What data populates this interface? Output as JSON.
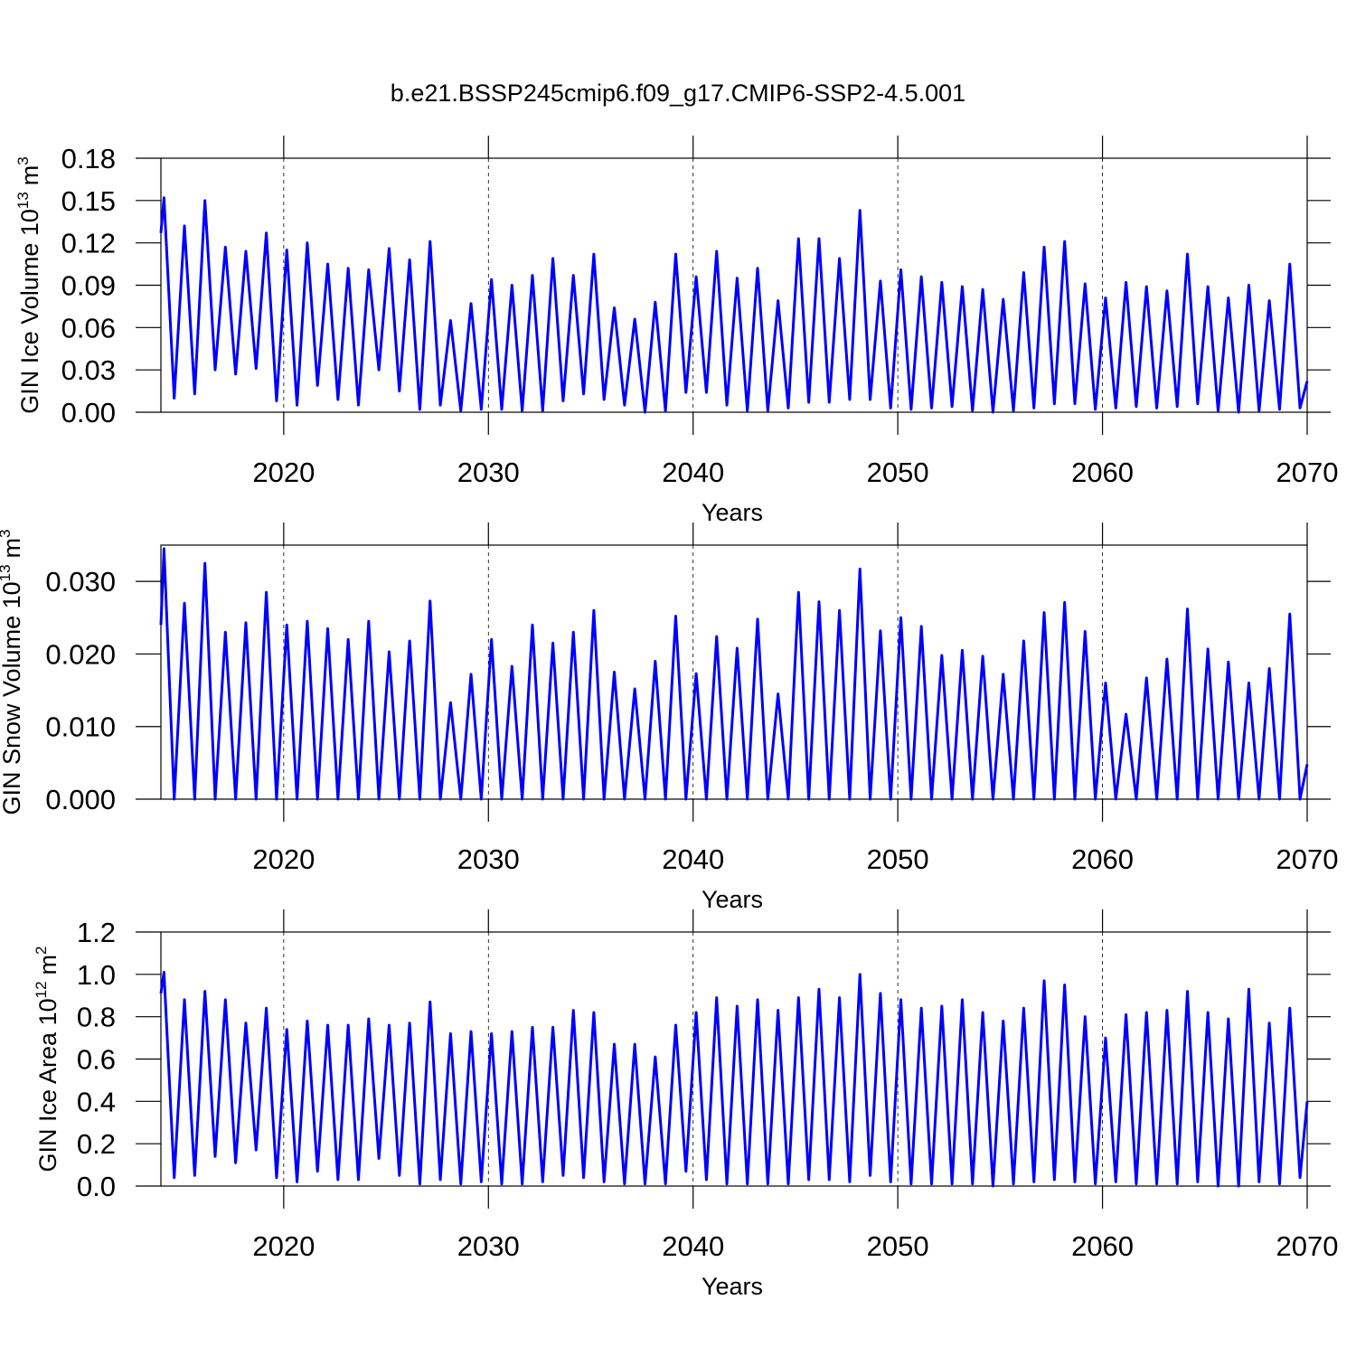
{
  "title": "b.e21.BSSP245cmip6.f09_g17.CMIP6-SSP2-4.5.001",
  "chart_data": [
    {
      "type": "line",
      "ylabel": [
        "GIN Ice Volume 10",
        "13",
        "m",
        "3"
      ],
      "xlabel": "Years",
      "x": [
        2014,
        2014.15,
        2014.65,
        2015.15,
        2015.65,
        2016.15,
        2016.65,
        2017.15,
        2017.65,
        2018.15,
        2018.65,
        2019.15,
        2019.65,
        2020.15,
        2020.65,
        2021.15,
        2021.65,
        2022.15,
        2022.65,
        2023.15,
        2023.65,
        2024.15,
        2024.65,
        2025.15,
        2025.65,
        2026.15,
        2026.65,
        2027.15,
        2027.65,
        2028.15,
        2028.65,
        2029.15,
        2029.65,
        2030.15,
        2030.65,
        2031.15,
        2031.65,
        2032.15,
        2032.65,
        2033.15,
        2033.65,
        2034.15,
        2034.65,
        2035.15,
        2035.65,
        2036.15,
        2036.65,
        2037.15,
        2037.65,
        2038.15,
        2038.65,
        2039.15,
        2039.65,
        2040.15,
        2040.65,
        2041.15,
        2041.65,
        2042.15,
        2042.65,
        2043.15,
        2043.65,
        2044.15,
        2044.65,
        2045.15,
        2045.65,
        2046.15,
        2046.65,
        2047.15,
        2047.65,
        2048.15,
        2048.65,
        2049.15,
        2049.65,
        2050.15,
        2050.65,
        2051.15,
        2051.65,
        2052.15,
        2052.65,
        2053.15,
        2053.65,
        2054.15,
        2054.65,
        2055.15,
        2055.65,
        2056.15,
        2056.65,
        2057.15,
        2057.65,
        2058.15,
        2058.65,
        2059.15,
        2059.65,
        2060.15,
        2060.65,
        2061.15,
        2061.65,
        2062.15,
        2062.65,
        2063.15,
        2063.65,
        2064.15,
        2064.65,
        2065.15,
        2065.65,
        2066.15,
        2066.65,
        2067.15,
        2067.65,
        2068.15,
        2068.65,
        2069.15,
        2069.65,
        2070
      ],
      "series": [
        {
          "color": "#0000ff",
          "values": [
            0.127,
            0.152,
            0.01,
            0.132,
            0.013,
            0.15,
            0.03,
            0.117,
            0.027,
            0.114,
            0.031,
            0.127,
            0.008,
            0.115,
            0.005,
            0.12,
            0.019,
            0.105,
            0.009,
            0.102,
            0.005,
            0.101,
            0.03,
            0.116,
            0.015,
            0.108,
            0.002,
            0.121,
            0.005,
            0.065,
            0.001,
            0.077,
            0.002,
            0.094,
            0.002,
            0.09,
            0.001,
            0.097,
            0.001,
            0.109,
            0.008,
            0.097,
            0.013,
            0.112,
            0.009,
            0.074,
            0.005,
            0.066,
            0.0,
            0.078,
            0.001,
            0.112,
            0.014,
            0.096,
            0.014,
            0.114,
            0.005,
            0.095,
            0.001,
            0.102,
            0.001,
            0.079,
            0.003,
            0.123,
            0.007,
            0.123,
            0.007,
            0.109,
            0.009,
            0.143,
            0.009,
            0.093,
            0.003,
            0.101,
            0.002,
            0.096,
            0.003,
            0.092,
            0.004,
            0.089,
            0.001,
            0.087,
            0.0,
            0.08,
            0.001,
            0.099,
            0.003,
            0.117,
            0.006,
            0.121,
            0.006,
            0.091,
            0.002,
            0.081,
            0.003,
            0.092,
            0.004,
            0.089,
            0.003,
            0.086,
            0.004,
            0.112,
            0.006,
            0.089,
            0.001,
            0.081,
            0.0,
            0.09,
            0.001,
            0.079,
            0.002,
            0.105,
            0.003,
            0.022
          ]
        }
      ],
      "xlim": [
        2014,
        2070
      ],
      "ylim": [
        0,
        0.18
      ],
      "xticks": [
        2020,
        2030,
        2040,
        2050,
        2060,
        2070
      ],
      "yticks": [
        {
          "value": 0,
          "label": "0.00"
        },
        {
          "value": 0.03,
          "label": "0.03"
        },
        {
          "value": 0.06,
          "label": "0.06"
        },
        {
          "value": 0.09,
          "label": "0.09"
        },
        {
          "value": 0.12,
          "label": "0.12"
        },
        {
          "value": 0.15,
          "label": "0.15"
        },
        {
          "value": 0.18,
          "label": "0.18"
        }
      ],
      "grid": true
    },
    {
      "type": "line",
      "ylabel": [
        "GIN Snow Volume 10",
        "13",
        "m",
        "3"
      ],
      "xlabel": "Years",
      "x": [
        2014,
        2014.15,
        2014.65,
        2015.15,
        2015.65,
        2016.15,
        2016.65,
        2017.15,
        2017.65,
        2018.15,
        2018.65,
        2019.15,
        2019.65,
        2020.15,
        2020.65,
        2021.15,
        2021.65,
        2022.15,
        2022.65,
        2023.15,
        2023.65,
        2024.15,
        2024.65,
        2025.15,
        2025.65,
        2026.15,
        2026.65,
        2027.15,
        2027.65,
        2028.15,
        2028.65,
        2029.15,
        2029.65,
        2030.15,
        2030.65,
        2031.15,
        2031.65,
        2032.15,
        2032.65,
        2033.15,
        2033.65,
        2034.15,
        2034.65,
        2035.15,
        2035.65,
        2036.15,
        2036.65,
        2037.15,
        2037.65,
        2038.15,
        2038.65,
        2039.15,
        2039.65,
        2040.15,
        2040.65,
        2041.15,
        2041.65,
        2042.15,
        2042.65,
        2043.15,
        2043.65,
        2044.15,
        2044.65,
        2045.15,
        2045.65,
        2046.15,
        2046.65,
        2047.15,
        2047.65,
        2048.15,
        2048.65,
        2049.15,
        2049.65,
        2050.15,
        2050.65,
        2051.15,
        2051.65,
        2052.15,
        2052.65,
        2053.15,
        2053.65,
        2054.15,
        2054.65,
        2055.15,
        2055.65,
        2056.15,
        2056.65,
        2057.15,
        2057.65,
        2058.15,
        2058.65,
        2059.15,
        2059.65,
        2060.15,
        2060.65,
        2061.15,
        2061.65,
        2062.15,
        2062.65,
        2063.15,
        2063.65,
        2064.15,
        2064.65,
        2065.15,
        2065.65,
        2066.15,
        2066.65,
        2067.15,
        2067.65,
        2068.15,
        2068.65,
        2069.15,
        2069.65,
        2070
      ],
      "series": [
        {
          "color": "#0000ff",
          "values": [
            0.024,
            0.0345,
            0,
            0.027,
            0,
            0.0325,
            0,
            0.023,
            0,
            0.0243,
            0,
            0.0285,
            0,
            0.024,
            0,
            0.0245,
            0,
            0.0235,
            0,
            0.022,
            0,
            0.0245,
            0,
            0.0203,
            0,
            0.0218,
            0,
            0.0273,
            0,
            0.0133,
            0,
            0.0172,
            0,
            0.022,
            0,
            0.0183,
            0,
            0.024,
            0,
            0.0215,
            0,
            0.023,
            0,
            0.026,
            0,
            0.0175,
            0,
            0.0152,
            0,
            0.019,
            0,
            0.0252,
            0,
            0.0173,
            0,
            0.0224,
            0,
            0.0208,
            0,
            0.0248,
            0,
            0.0145,
            0,
            0.0285,
            0,
            0.0272,
            0,
            0.026,
            0,
            0.0317,
            0,
            0.0232,
            0,
            0.025,
            0,
            0.0238,
            0,
            0.0198,
            0,
            0.0205,
            0,
            0.0197,
            0,
            0.0172,
            0,
            0.0218,
            0,
            0.0257,
            0,
            0.0271,
            0,
            0.0231,
            0,
            0.016,
            0,
            0.0117,
            0,
            0.0167,
            0,
            0.0193,
            0,
            0.0262,
            0,
            0.0207,
            0,
            0.0189,
            0,
            0.016,
            0,
            0.018,
            0,
            0.0255,
            0,
            0.0048
          ]
        }
      ],
      "xlim": [
        2014,
        2070
      ],
      "ylim": [
        0,
        0.035
      ],
      "xticks": [
        2020,
        2030,
        2040,
        2050,
        2060,
        2070
      ],
      "yticks": [
        {
          "value": 0,
          "label": "0.000"
        },
        {
          "value": 0.01,
          "label": "0.010"
        },
        {
          "value": 0.02,
          "label": "0.020"
        },
        {
          "value": 0.03,
          "label": "0.030"
        }
      ],
      "grid": true
    },
    {
      "type": "line",
      "ylabel": [
        "GIN Ice Area 10",
        "12",
        "m",
        "2"
      ],
      "xlabel": "Years",
      "x": [
        2014,
        2014.15,
        2014.65,
        2015.15,
        2015.65,
        2016.15,
        2016.65,
        2017.15,
        2017.65,
        2018.15,
        2018.65,
        2019.15,
        2019.65,
        2020.15,
        2020.65,
        2021.15,
        2021.65,
        2022.15,
        2022.65,
        2023.15,
        2023.65,
        2024.15,
        2024.65,
        2025.15,
        2025.65,
        2026.15,
        2026.65,
        2027.15,
        2027.65,
        2028.15,
        2028.65,
        2029.15,
        2029.65,
        2030.15,
        2030.65,
        2031.15,
        2031.65,
        2032.15,
        2032.65,
        2033.15,
        2033.65,
        2034.15,
        2034.65,
        2035.15,
        2035.65,
        2036.15,
        2036.65,
        2037.15,
        2037.65,
        2038.15,
        2038.65,
        2039.15,
        2039.65,
        2040.15,
        2040.65,
        2041.15,
        2041.65,
        2042.15,
        2042.65,
        2043.15,
        2043.65,
        2044.15,
        2044.65,
        2045.15,
        2045.65,
        2046.15,
        2046.65,
        2047.15,
        2047.65,
        2048.15,
        2048.65,
        2049.15,
        2049.65,
        2050.15,
        2050.65,
        2051.15,
        2051.65,
        2052.15,
        2052.65,
        2053.15,
        2053.65,
        2054.15,
        2054.65,
        2055.15,
        2055.65,
        2056.15,
        2056.65,
        2057.15,
        2057.65,
        2058.15,
        2058.65,
        2059.15,
        2059.65,
        2060.15,
        2060.65,
        2061.15,
        2061.65,
        2062.15,
        2062.65,
        2063.15,
        2063.65,
        2064.15,
        2064.65,
        2065.15,
        2065.65,
        2066.15,
        2066.65,
        2067.15,
        2067.65,
        2068.15,
        2068.65,
        2069.15,
        2069.65,
        2070
      ],
      "series": [
        {
          "color": "#0000ff",
          "values": [
            0.91,
            1.01,
            0.04,
            0.88,
            0.05,
            0.92,
            0.14,
            0.88,
            0.11,
            0.77,
            0.17,
            0.84,
            0.04,
            0.74,
            0.02,
            0.78,
            0.07,
            0.76,
            0.03,
            0.76,
            0.03,
            0.79,
            0.13,
            0.76,
            0.05,
            0.77,
            0.01,
            0.87,
            0.03,
            0.72,
            0.01,
            0.73,
            0.02,
            0.72,
            0.01,
            0.73,
            0.01,
            0.75,
            0.02,
            0.75,
            0.05,
            0.83,
            0.04,
            0.82,
            0.02,
            0.67,
            0.01,
            0.67,
            0.01,
            0.61,
            0.01,
            0.76,
            0.07,
            0.82,
            0.03,
            0.89,
            0.01,
            0.85,
            0.01,
            0.88,
            0.01,
            0.83,
            0.01,
            0.89,
            0.03,
            0.93,
            0.03,
            0.89,
            0.02,
            1.0,
            0.05,
            0.91,
            0.02,
            0.88,
            0.01,
            0.84,
            0.01,
            0.85,
            0.01,
            0.88,
            0.01,
            0.82,
            0.0,
            0.78,
            0.01,
            0.84,
            0.02,
            0.97,
            0.03,
            0.95,
            0.02,
            0.8,
            0.01,
            0.7,
            0.02,
            0.81,
            0.01,
            0.82,
            0.01,
            0.83,
            0.01,
            0.92,
            0.02,
            0.82,
            0.0,
            0.79,
            0.0,
            0.93,
            0.02,
            0.77,
            0.01,
            0.84,
            0.04,
            0.4
          ]
        }
      ],
      "xlim": [
        2014,
        2070
      ],
      "ylim": [
        0,
        1.2
      ],
      "xticks": [
        2020,
        2030,
        2040,
        2050,
        2060,
        2070
      ],
      "yticks": [
        {
          "value": 0,
          "label": "0.0"
        },
        0.2,
        0.4,
        0.6,
        0.8,
        {
          "value": 1,
          "label": "1.0"
        },
        1.2
      ],
      "grid": true
    }
  ]
}
